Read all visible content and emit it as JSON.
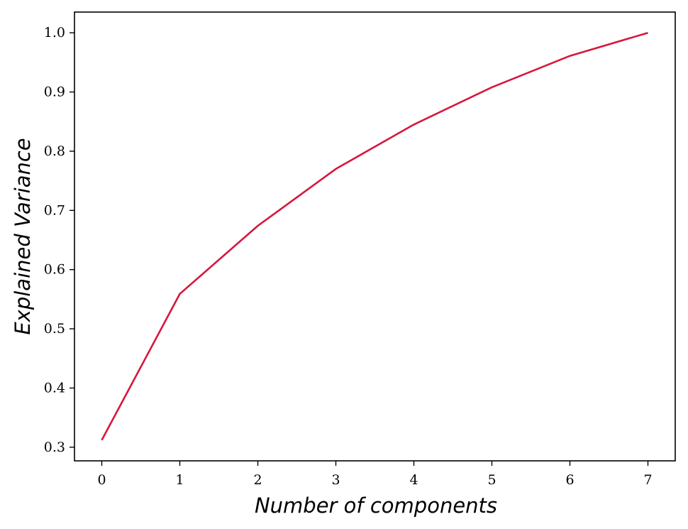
{
  "chart_data": {
    "type": "line",
    "title": "",
    "xlabel": "Number of components",
    "ylabel": "Explained Variance",
    "x": [
      0,
      1,
      2,
      3,
      4,
      5,
      6,
      7
    ],
    "series": [
      {
        "values": [
          0.312,
          0.559,
          0.674,
          0.77,
          0.845,
          0.908,
          0.961,
          1.0
        ],
        "color": "#d6173f"
      }
    ],
    "xlim": [
      -0.35,
      7.35
    ],
    "ylim": [
      0.277,
      1.035
    ],
    "xticks": [
      0,
      1,
      2,
      3,
      4,
      5,
      6,
      7
    ],
    "xtick_labels": [
      "0",
      "1",
      "2",
      "3",
      "4",
      "5",
      "6",
      "7"
    ],
    "yticks": [
      0.3,
      0.4,
      0.5,
      0.6,
      0.7,
      0.8,
      0.9,
      1.0
    ],
    "ytick_labels": [
      "0.3",
      "0.4",
      "0.5",
      "0.6",
      "0.7",
      "0.8",
      "0.9",
      "1.0"
    ],
    "grid": false,
    "legend": false
  }
}
